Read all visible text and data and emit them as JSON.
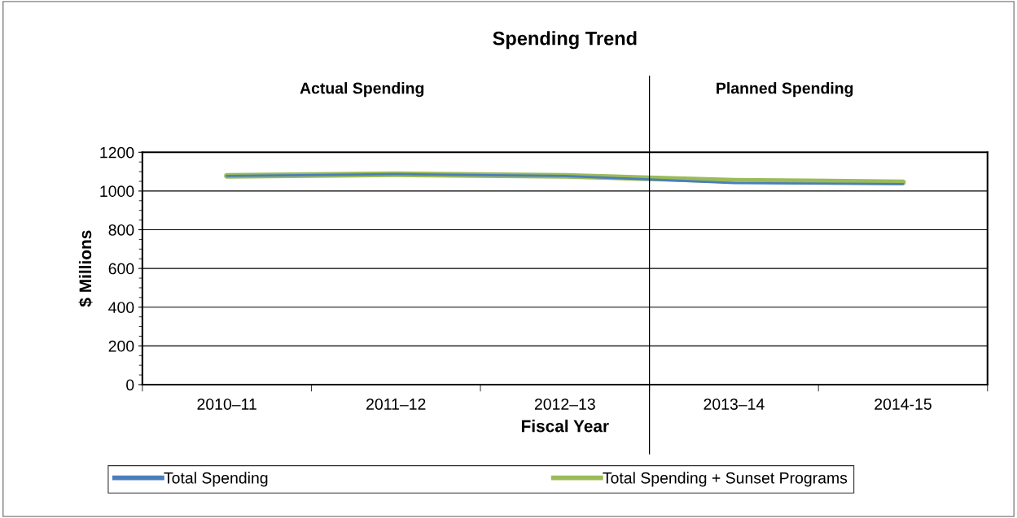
{
  "chart_data": {
    "type": "line",
    "title": "Spending Trend",
    "xlabel": "Fiscal Year",
    "ylabel": "$ Millions",
    "categories": [
      "2010–11",
      "2011–12",
      "2012–13",
      "2013–14",
      "2014-15"
    ],
    "series": [
      {
        "name": "Total Spending",
        "color": "#4a7ebb",
        "values": [
          1078,
          1087,
          1078,
          1041,
          1036
        ]
      },
      {
        "name": "Total Spending + Sunset Programs",
        "color": "#9bbb59",
        "values": [
          1078,
          1087,
          1078,
          1053,
          1045
        ]
      }
    ],
    "ylim": [
      0,
      1200
    ],
    "yticks": [
      0,
      200,
      400,
      600,
      800,
      1000,
      1200
    ],
    "grid": "y",
    "legend": "bottom",
    "marker": "none",
    "line_style": "solid",
    "annotations": [
      "Actual Spending",
      "Planned Spending"
    ]
  }
}
